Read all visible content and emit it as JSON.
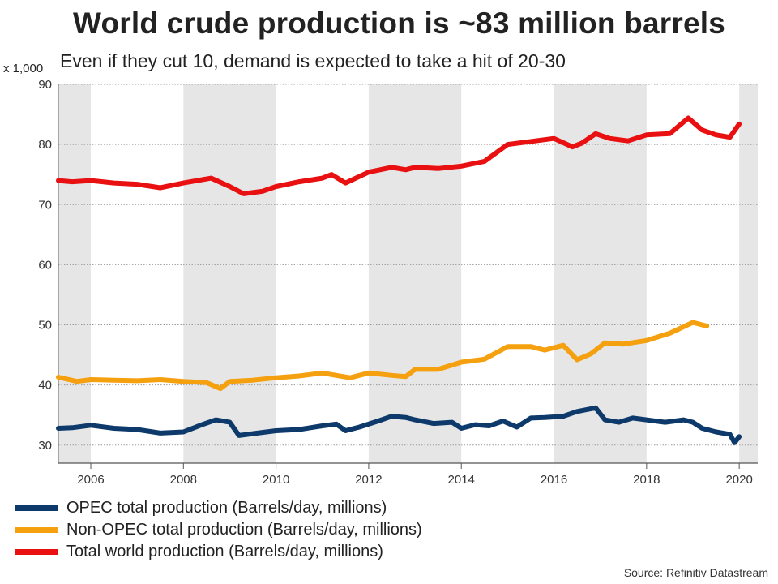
{
  "chart_data": {
    "type": "line",
    "title": "World crude production is ~83 million barrels",
    "subtitle": "Even if they cut 10, demand is expected to take a hit of 20-30",
    "y_unit": "x 1,000",
    "ylim": [
      27,
      90
    ],
    "xlim": [
      2005.3,
      2020.4
    ],
    "yticks": [
      "30",
      "40",
      "50",
      "60",
      "70",
      "80",
      "90"
    ],
    "xticks": [
      "2006",
      "2008",
      "2010",
      "2012",
      "2014",
      "2016",
      "2018",
      "2020"
    ],
    "shaded_year_bands": [
      [
        2005.3,
        2006
      ],
      [
        2008,
        2010
      ],
      [
        2012,
        2014
      ],
      [
        2016,
        2018
      ],
      [
        2020,
        2020.4
      ]
    ],
    "grid": true,
    "legend_position": "bottom-left",
    "source": "Source: Refinitiv Datastream",
    "series": [
      {
        "name": "OPEC total production (Barrels/day, millions)",
        "color": "#0d3a6a",
        "points": [
          [
            2005.3,
            32.8
          ],
          [
            2005.6,
            32.9
          ],
          [
            2006.0,
            33.3
          ],
          [
            2006.5,
            32.8
          ],
          [
            2007.0,
            32.6
          ],
          [
            2007.5,
            32.0
          ],
          [
            2008.0,
            32.2
          ],
          [
            2008.4,
            33.4
          ],
          [
            2008.7,
            34.2
          ],
          [
            2009.0,
            33.8
          ],
          [
            2009.2,
            31.6
          ],
          [
            2009.6,
            32.0
          ],
          [
            2010.0,
            32.4
          ],
          [
            2010.5,
            32.6
          ],
          [
            2011.0,
            33.2
          ],
          [
            2011.3,
            33.5
          ],
          [
            2011.5,
            32.4
          ],
          [
            2011.8,
            33.0
          ],
          [
            2012.2,
            34.0
          ],
          [
            2012.5,
            34.8
          ],
          [
            2012.8,
            34.6
          ],
          [
            2013.0,
            34.2
          ],
          [
            2013.4,
            33.6
          ],
          [
            2013.8,
            33.8
          ],
          [
            2014.0,
            32.8
          ],
          [
            2014.3,
            33.4
          ],
          [
            2014.6,
            33.2
          ],
          [
            2014.9,
            34.0
          ],
          [
            2015.2,
            33.0
          ],
          [
            2015.5,
            34.5
          ],
          [
            2015.8,
            34.6
          ],
          [
            2016.2,
            34.8
          ],
          [
            2016.5,
            35.6
          ],
          [
            2016.9,
            36.2
          ],
          [
            2017.1,
            34.2
          ],
          [
            2017.4,
            33.8
          ],
          [
            2017.7,
            34.5
          ],
          [
            2018.0,
            34.2
          ],
          [
            2018.4,
            33.8
          ],
          [
            2018.8,
            34.2
          ],
          [
            2019.0,
            33.8
          ],
          [
            2019.2,
            32.8
          ],
          [
            2019.5,
            32.2
          ],
          [
            2019.8,
            31.8
          ],
          [
            2019.9,
            30.4
          ],
          [
            2020.0,
            31.4
          ]
        ]
      },
      {
        "name": "Non-OPEC total production (Barrels/day, millions)",
        "color": "#f5a00f",
        "points": [
          [
            2005.3,
            41.3
          ],
          [
            2005.7,
            40.6
          ],
          [
            2006.0,
            40.9
          ],
          [
            2006.5,
            40.8
          ],
          [
            2007.0,
            40.7
          ],
          [
            2007.5,
            40.9
          ],
          [
            2008.0,
            40.6
          ],
          [
            2008.5,
            40.4
          ],
          [
            2008.8,
            39.4
          ],
          [
            2009.0,
            40.6
          ],
          [
            2009.5,
            40.8
          ],
          [
            2010.0,
            41.2
          ],
          [
            2010.5,
            41.5
          ],
          [
            2011.0,
            42.0
          ],
          [
            2011.3,
            41.6
          ],
          [
            2011.6,
            41.2
          ],
          [
            2012.0,
            42.0
          ],
          [
            2012.5,
            41.6
          ],
          [
            2012.8,
            41.4
          ],
          [
            2013.0,
            42.6
          ],
          [
            2013.5,
            42.6
          ],
          [
            2014.0,
            43.8
          ],
          [
            2014.5,
            44.3
          ],
          [
            2015.0,
            46.4
          ],
          [
            2015.5,
            46.4
          ],
          [
            2015.8,
            45.8
          ],
          [
            2016.2,
            46.6
          ],
          [
            2016.5,
            44.2
          ],
          [
            2016.8,
            45.2
          ],
          [
            2017.1,
            47.0
          ],
          [
            2017.5,
            46.8
          ],
          [
            2018.0,
            47.4
          ],
          [
            2018.5,
            48.6
          ],
          [
            2019.0,
            50.4
          ],
          [
            2019.3,
            49.8
          ]
        ]
      },
      {
        "name": "Total world production (Barrels/day, millions)",
        "color": "#e81010",
        "points": [
          [
            2005.3,
            74.0
          ],
          [
            2005.6,
            73.8
          ],
          [
            2006.0,
            74.0
          ],
          [
            2006.5,
            73.6
          ],
          [
            2007.0,
            73.4
          ],
          [
            2007.5,
            72.8
          ],
          [
            2008.0,
            73.6
          ],
          [
            2008.6,
            74.4
          ],
          [
            2009.0,
            73.0
          ],
          [
            2009.3,
            71.8
          ],
          [
            2009.7,
            72.2
          ],
          [
            2010.0,
            73.0
          ],
          [
            2010.5,
            73.8
          ],
          [
            2011.0,
            74.4
          ],
          [
            2011.2,
            75.0
          ],
          [
            2011.5,
            73.6
          ],
          [
            2012.0,
            75.4
          ],
          [
            2012.5,
            76.2
          ],
          [
            2012.8,
            75.8
          ],
          [
            2013.0,
            76.2
          ],
          [
            2013.5,
            76.0
          ],
          [
            2014.0,
            76.4
          ],
          [
            2014.5,
            77.2
          ],
          [
            2015.0,
            80.0
          ],
          [
            2015.4,
            80.4
          ],
          [
            2016.0,
            81.0
          ],
          [
            2016.4,
            79.6
          ],
          [
            2016.6,
            80.2
          ],
          [
            2016.9,
            81.8
          ],
          [
            2017.2,
            81.0
          ],
          [
            2017.6,
            80.6
          ],
          [
            2018.0,
            81.6
          ],
          [
            2018.5,
            81.8
          ],
          [
            2018.9,
            84.4
          ],
          [
            2019.2,
            82.4
          ],
          [
            2019.5,
            81.6
          ],
          [
            2019.8,
            81.2
          ],
          [
            2020.0,
            83.4
          ]
        ]
      }
    ]
  }
}
